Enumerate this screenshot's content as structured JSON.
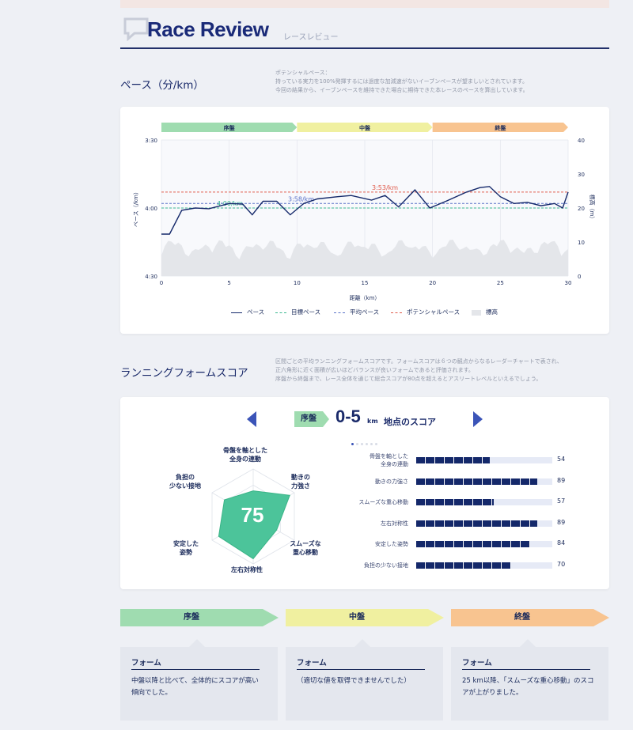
{
  "header": {
    "title": "Race Review",
    "subtitle": "レースレビュー",
    "icon": "speech-bubble-icon"
  },
  "pace_section": {
    "title": "ペース（分/km）",
    "desc": [
      "ポテンシャルペース：",
      "持っている実力を100%発揮するには過度な加減速がないイーブンペースが望ましいとされています。",
      "今回の結果から、イーブンペースを維持できた場合に期待できた本レースのペースを算出しています。"
    ]
  },
  "chart_data": {
    "type": "line",
    "phases": [
      "序盤",
      "中盤",
      "終盤"
    ],
    "phase_colors": [
      "#9fdcb0",
      "#f0f0a0",
      "#f8c490"
    ],
    "x_ticks": [
      "0",
      "5",
      "10",
      "15",
      "20",
      "25",
      "30"
    ],
    "x_range": [
      0,
      30
    ],
    "y_left_ticks": [
      "3:30",
      "4:00",
      "4:30"
    ],
    "y_right_ticks": [
      "40",
      "30",
      "20",
      "10",
      "0"
    ],
    "y_right_range": [
      0,
      40
    ],
    "xlabel": "距離（km）",
    "ylabel_left": "ペース（/km）",
    "ylabel_right": "標高（m）",
    "lines": {
      "target_pace": "4:00/km",
      "average_pace": "3:58/km",
      "potential_pace": "3:53/km"
    },
    "line_values_sec": {
      "target": 240,
      "average": 238,
      "potential": 233
    },
    "pace_series": [
      [
        0,
        251.5
      ],
      [
        0.6,
        251.5
      ],
      [
        1.5,
        241
      ],
      [
        2.5,
        240
      ],
      [
        3.5,
        240.3
      ],
      [
        5,
        238
      ],
      [
        6,
        238.3
      ],
      [
        6.7,
        243
      ],
      [
        7.5,
        237
      ],
      [
        8.5,
        237
      ],
      [
        9.5,
        243
      ],
      [
        10.5,
        238
      ],
      [
        11.5,
        236
      ],
      [
        13,
        235
      ],
      [
        14,
        234.5
      ],
      [
        15.5,
        236.5
      ],
      [
        16.5,
        234.5
      ],
      [
        17.5,
        239.5
      ],
      [
        18.7,
        232
      ],
      [
        19.8,
        240
      ],
      [
        21,
        237
      ],
      [
        22.5,
        233
      ],
      [
        23.5,
        231
      ],
      [
        24.2,
        230.5
      ],
      [
        25,
        235
      ],
      [
        26,
        238
      ],
      [
        27,
        237.5
      ],
      [
        28,
        239
      ],
      [
        29,
        238
      ],
      [
        29.6,
        240
      ],
      [
        30,
        233
      ]
    ],
    "series_colors": {
      "pace": "#14286a",
      "target": "#3ab890",
      "average": "#5a72c8",
      "potential": "#e05a4a",
      "elevation": "#e4e6ea"
    },
    "legend": [
      "ペース",
      "目標ペース",
      "平均ペース",
      "ポテンシャルペース",
      "標高"
    ]
  },
  "form_section": {
    "title": "ランニングフォームスコア",
    "desc": [
      "区間ごとの平均ランニングフォームスコアです。フォームスコアは６つの観点からなるレーダーチャートで表され、",
      "正六角形に近く面積が広いほどバランスが良いフォームであると評価されます。",
      "序盤から終盤まで、レース全体を通じて総合スコアが80点を超えるとアスリートレベルといえるでしょう。"
    ],
    "phase_tag": "序盤",
    "range": "0-5",
    "range_unit": "km",
    "range_label": "地点のスコア",
    "total_score": "75",
    "dots_total": 6,
    "radar_labels": [
      "骨盤を軸とした\n全身の連動",
      "動きの\n力強さ",
      "スムーズな\n重心移動",
      "左右対称性",
      "安定した\n姿勢",
      "負担の\n少ない接地"
    ],
    "bars": [
      {
        "label": "骨盤を軸とした\n全身の連動",
        "value": 54
      },
      {
        "label": "動きの力強さ",
        "value": 89
      },
      {
        "label": "スムーズな重心移動",
        "value": 57
      },
      {
        "label": "左右対称性",
        "value": 89
      },
      {
        "label": "安定した姿勢",
        "value": 84
      },
      {
        "label": "負担の少ない接地",
        "value": 70
      }
    ],
    "radar_color": "#4cc49a"
  },
  "phase_summary": [
    {
      "name": "序盤",
      "color": "#9fdcb0",
      "heading": "フォーム",
      "text": "中盤以降と比べて、全体的にスコアが高い傾向でした。"
    },
    {
      "name": "中盤",
      "color": "#f0f0a0",
      "heading": "フォーム",
      "text": "（適切な値を取得できませんでした）"
    },
    {
      "name": "終盤",
      "color": "#f8c490",
      "heading": "フォーム",
      "text": "25 km以降、「スムーズな重心移動」のスコアが上がりました。"
    }
  ]
}
